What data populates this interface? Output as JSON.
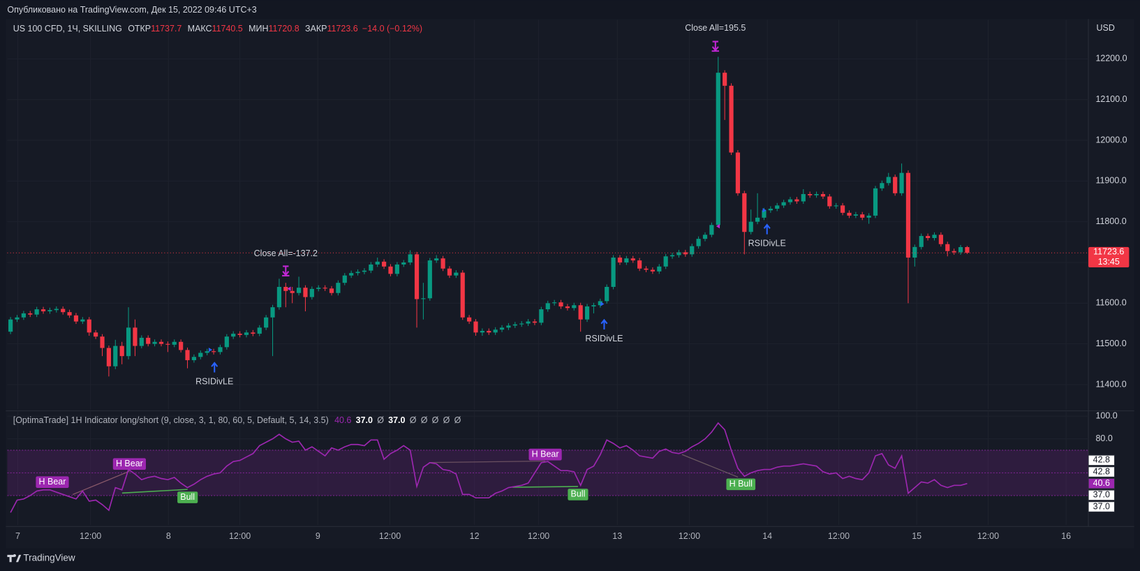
{
  "header": {
    "published": "Опубликовано на TradingView.com, Дек 15, 2022 09:46 UTC+3",
    "brand": "TradingView"
  },
  "chart_data": [
    {
      "type": "candlestick",
      "legend_labels": [
        "ОТКР",
        "МАКС",
        "МИН",
        "ЗАКР"
      ],
      "change": "−14.0 (−0.12%)",
      "currency": "USD",
      "countdown": "13:45",
      "annotations": [
        "Close All=-137.2",
        "Close All=195.5",
        "RSIDivLE",
        "RSIDivLE",
        "RSIDivLE"
      ],
      "grid": true,
      "xlim": [
        0,
        165
      ],
      "xticks": [
        {
          "value": 1.6,
          "label": "7"
        },
        {
          "value": 12.7,
          "label": "12:00"
        },
        {
          "value": 24.6,
          "label": "8"
        },
        {
          "value": 35.5,
          "label": "12:00"
        },
        {
          "value": 47.4,
          "label": "9"
        },
        {
          "value": 58.4,
          "label": "12:00"
        },
        {
          "value": 71.3,
          "label": "12"
        },
        {
          "value": 81.1,
          "label": "12:00"
        },
        {
          "value": 93.1,
          "label": "13"
        },
        {
          "value": 104.1,
          "label": "12:00"
        },
        {
          "value": 116,
          "label": "14"
        },
        {
          "value": 126.9,
          "label": "12:00"
        },
        {
          "value": 138.8,
          "label": "15"
        },
        {
          "value": 149.7,
          "label": "12:00"
        },
        {
          "value": 161.6,
          "label": "16"
        }
      ],
      "ylim": [
        11339,
        12296
      ],
      "yticks": [
        {
          "value": 11400,
          "label": "11400.0"
        },
        {
          "value": 11500,
          "label": "11500.0"
        },
        {
          "value": 11600,
          "label": "11600.0"
        },
        {
          "value": 11700,
          "label": "11700.0"
        },
        {
          "value": 11800,
          "label": "11800.0"
        },
        {
          "value": 11900,
          "label": "11900.0"
        },
        {
          "value": 12000,
          "label": "12000.0"
        },
        {
          "value": 12100,
          "label": "12100.0"
        },
        {
          "value": 12200,
          "label": "12200.0"
        }
      ],
      "series": [
        {
          "name": "US 100 CFD, 1Ч, SKILLING",
          "up_color": "#089981",
          "down_color": "#f23645",
          "open": [
            11530,
            11560,
            11565,
            11575,
            11572,
            11585,
            11580,
            11583,
            11586,
            11578,
            11570,
            11555,
            11560,
            11528,
            11518,
            11490,
            11445,
            11495,
            11470,
            11540,
            11495,
            11515,
            11500,
            11505,
            11500,
            11498,
            11505,
            11485,
            11460,
            11468,
            11478,
            11482,
            11480,
            11492,
            11518,
            11525,
            11522,
            11528,
            11525,
            11540,
            11565,
            11590,
            11640,
            11630,
            11625,
            11638,
            11615,
            11635,
            11638,
            11636,
            11625,
            11650,
            11668,
            11674,
            11677,
            11680,
            11695,
            11702,
            11690,
            11672,
            11695,
            11700,
            11720,
            11610,
            11612,
            11705,
            11710,
            11685,
            11668,
            11675,
            11565,
            11555,
            11528,
            11532,
            11528,
            11535,
            11540,
            11545,
            11548,
            11550,
            11555,
            11552,
            11585,
            11600,
            11602,
            11592,
            11588,
            11595,
            11560,
            11592,
            11595,
            11605,
            11640,
            11712,
            11700,
            11710,
            11705,
            11685,
            11682,
            11678,
            11690,
            11715,
            11718,
            11725,
            11720,
            11740,
            11758,
            11768,
            11792,
            12166,
            12134,
            11970,
            11870,
            11775,
            11800,
            11810,
            11828,
            11832,
            11840,
            11848,
            11855,
            11850,
            11868,
            11865,
            11868,
            11862,
            11838,
            11840,
            11822,
            11815,
            11818,
            11810,
            11815,
            11882,
            11895,
            11910,
            11870,
            11920,
            11712,
            11738,
            11765,
            11760,
            11768,
            11745,
            11728,
            11725,
            11737.7
          ],
          "high": [
            11566,
            11571,
            11581,
            11581,
            11591,
            11591,
            11589,
            11592,
            11592,
            11584,
            11576,
            11566,
            11566,
            11534,
            11524,
            11496,
            11510,
            11505,
            11590,
            11560,
            11521,
            11521,
            11511,
            11511,
            11506,
            11511,
            11511,
            11491,
            11474,
            11484,
            11488,
            11488,
            11498,
            11524,
            11531,
            11531,
            11534,
            11534,
            11546,
            11571,
            11596,
            11660,
            11650,
            11640,
            11665,
            11644,
            11641,
            11644,
            11644,
            11642,
            11656,
            11674,
            11680,
            11683,
            11686,
            11701,
            11712,
            11708,
            11696,
            11701,
            11706,
            11730,
            11726,
            11650,
            11711,
            11718,
            11716,
            11691,
            11681,
            11681,
            11571,
            11561,
            11538,
            11538,
            11541,
            11546,
            11551,
            11554,
            11556,
            11561,
            11561,
            11591,
            11606,
            11608,
            11608,
            11598,
            11601,
            11601,
            11598,
            11601,
            11611,
            11646,
            11718,
            11718,
            11716,
            11716,
            11711,
            11691,
            11688,
            11696,
            11721,
            11724,
            11731,
            11731,
            11746,
            11764,
            11774,
            11798,
            12205,
            12172,
            12140,
            11976,
            11876,
            11830,
            11870,
            11834,
            11838,
            11846,
            11854,
            11861,
            11861,
            11880,
            11874,
            11874,
            11874,
            11868,
            11846,
            11846,
            11828,
            11824,
            11824,
            11821,
            11888,
            11901,
            11920,
            11916,
            11943,
            11926,
            11744,
            11771,
            11771,
            11774,
            11774,
            11751,
            11734,
            11743,
            11740.5
          ],
          "low": [
            11524,
            11554,
            11559,
            11566,
            11566,
            11574,
            11574,
            11577,
            11572,
            11564,
            11549,
            11549,
            11520,
            11512,
            11470,
            11420,
            11438,
            11450,
            11462,
            11470,
            11489,
            11494,
            11494,
            11494,
            11480,
            11492,
            11479,
            11440,
            11454,
            11462,
            11472,
            11474,
            11474,
            11486,
            11512,
            11516,
            11516,
            11519,
            11519,
            11534,
            11470,
            11584,
            11590,
            11600,
            11619,
            11580,
            11609,
            11629,
            11630,
            11619,
            11619,
            11644,
            11662,
            11668,
            11671,
            11674,
            11689,
            11684,
            11666,
            11666,
            11689,
            11694,
            11540,
            11560,
            11606,
            11699,
            11679,
            11662,
            11662,
            11559,
            11549,
            11520,
            11520,
            11522,
            11522,
            11529,
            11534,
            11539,
            11542,
            11544,
            11546,
            11546,
            11579,
            11594,
            11586,
            11582,
            11582,
            11530,
            11554,
            11575,
            11589,
            11599,
            11634,
            11694,
            11694,
            11699,
            11679,
            11676,
            11672,
            11672,
            11684,
            11709,
            11712,
            11714,
            11714,
            11734,
            11752,
            11762,
            11786,
            12050,
            11964,
            11864,
            11720,
            11769,
            11794,
            11804,
            11822,
            11826,
            11834,
            11842,
            11844,
            11844,
            11859,
            11859,
            11856,
            11832,
            11832,
            11816,
            11809,
            11809,
            11804,
            11795,
            11809,
            11876,
            11889,
            11864,
            11864,
            11600,
            11690,
            11732,
            11754,
            11754,
            11739,
            11715,
            11719,
            11719,
            11720.8
          ],
          "close": [
            11560,
            11565,
            11575,
            11572,
            11585,
            11580,
            11583,
            11586,
            11578,
            11570,
            11555,
            11560,
            11528,
            11518,
            11490,
            11445,
            11495,
            11470,
            11540,
            11495,
            11515,
            11500,
            11505,
            11500,
            11498,
            11505,
            11485,
            11460,
            11468,
            11478,
            11482,
            11480,
            11492,
            11518,
            11525,
            11522,
            11528,
            11525,
            11540,
            11565,
            11590,
            11640,
            11630,
            11625,
            11638,
            11615,
            11635,
            11638,
            11636,
            11625,
            11650,
            11668,
            11674,
            11677,
            11680,
            11695,
            11702,
            11690,
            11672,
            11695,
            11700,
            11720,
            11610,
            11612,
            11705,
            11710,
            11685,
            11668,
            11675,
            11565,
            11555,
            11528,
            11532,
            11528,
            11535,
            11540,
            11545,
            11548,
            11550,
            11555,
            11552,
            11585,
            11600,
            11602,
            11592,
            11588,
            11595,
            11560,
            11592,
            11595,
            11605,
            11640,
            11712,
            11700,
            11710,
            11705,
            11685,
            11682,
            11678,
            11690,
            11715,
            11718,
            11725,
            11720,
            11740,
            11758,
            11768,
            11792,
            12166,
            12134,
            11970,
            11870,
            11775,
            11800,
            11810,
            11828,
            11832,
            11840,
            11848,
            11855,
            11850,
            11868,
            11865,
            11868,
            11862,
            11838,
            11840,
            11822,
            11815,
            11818,
            11810,
            11815,
            11882,
            11895,
            11910,
            11870,
            11920,
            11712,
            11738,
            11765,
            11760,
            11768,
            11745,
            11728,
            11725,
            11737.7,
            11723.6
          ]
        }
      ]
    },
    {
      "type": "line",
      "title": "[OptimaTrade] 1H Indicator long/short (9, close, 3, 1, 80, 60, 5, Default, 5, 14, 3.5)",
      "status": [
        40.6,
        {
          "value": 37,
          "label": "37.0"
        },
        "Ø",
        {
          "value": 37,
          "label": "37.0"
        },
        "Ø",
        "Ø",
        "Ø",
        "Ø",
        "Ø"
      ],
      "ylim": [
        4,
        104
      ],
      "yticks": [
        {
          "value": 100,
          "label": "100.0"
        },
        {
          "value": 80,
          "label": "80.0"
        }
      ],
      "levels": [
        30,
        50,
        70
      ],
      "band_color": "#9c27b0",
      "scale_labels": [
        {
          "value": 42.8,
          "label": "42.8"
        },
        {
          "value": 42.8,
          "label": "42.8"
        },
        {
          "value": 40.6,
          "label": "40.6"
        },
        {
          "value": 37,
          "label": "37.0"
        },
        {
          "value": 37,
          "label": "37.0"
        }
      ],
      "annotations": [
        "H Bear",
        "H Bear",
        "Bull",
        "H Bear",
        "Bull",
        "H Bull"
      ],
      "series": [
        {
          "color": "#9c27b0",
          "values": [
            15,
            26,
            27,
            30,
            34,
            35,
            35,
            33,
            31,
            29,
            27,
            34,
            25,
            26,
            22,
            17,
            37,
            35,
            53,
            49,
            44,
            46,
            47,
            45,
            44,
            46,
            41,
            37,
            40,
            44,
            47,
            49,
            50,
            56,
            60,
            61,
            64,
            67,
            74,
            77,
            80,
            84,
            80,
            77,
            78,
            70,
            73,
            69,
            65,
            72,
            70,
            73,
            75,
            75,
            74,
            79,
            79,
            62,
            67,
            70,
            74,
            70,
            38,
            55,
            59,
            58,
            53,
            52,
            49,
            31,
            31,
            28,
            28,
            28,
            32,
            34,
            37,
            38,
            39,
            41,
            50,
            59,
            60,
            56,
            52,
            52,
            51,
            39,
            53,
            56,
            66,
            79,
            76,
            72,
            74,
            70,
            65,
            64,
            63,
            69,
            71,
            68,
            67,
            69,
            73,
            76,
            80,
            86,
            94,
            88,
            70,
            54,
            47,
            50,
            52,
            53,
            53,
            55,
            56,
            56,
            57,
            58,
            57,
            56,
            51,
            49,
            50,
            45,
            47,
            45,
            44,
            50,
            65,
            67,
            57,
            54,
            65,
            32,
            37,
            42,
            41,
            44,
            39,
            37,
            39,
            39,
            40.6
          ]
        }
      ]
    }
  ]
}
